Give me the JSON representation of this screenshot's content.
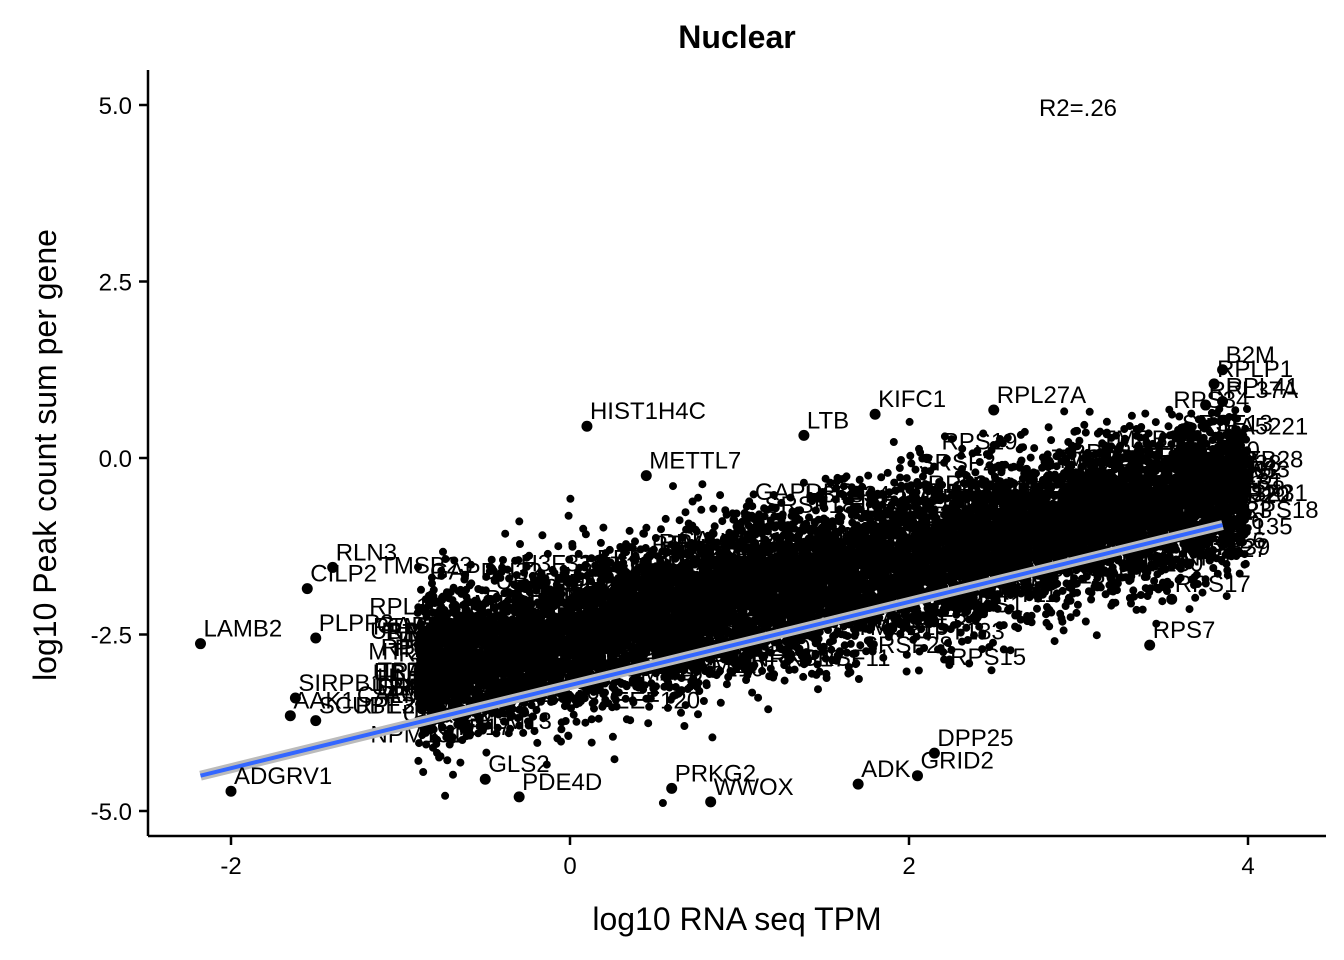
{
  "chart_data": {
    "type": "scatter",
    "title": "Nuclear",
    "xlabel": "log10 RNA seq TPM",
    "ylabel": "log10 Peak count sum per gene",
    "xlim": [
      -2.5,
      4.5
    ],
    "ylim": [
      -5.35,
      5.5
    ],
    "xticks": [
      -2,
      0,
      2,
      4
    ],
    "xtick_labels": [
      "-2",
      "0",
      "2",
      "4"
    ],
    "yticks": [
      -5,
      -2.5,
      0,
      2.5,
      5
    ],
    "ytick_labels": [
      "-5.0",
      "-2.5",
      "0.0",
      "2.5",
      "5.0"
    ],
    "annotation": "R2=.26",
    "grid": false,
    "point_color": "#000000",
    "fit_color": "#3366FF",
    "fit_line": {
      "x": [
        -2.18,
        3.85
      ],
      "y": [
        -4.5,
        -0.95
      ]
    },
    "labeled_points": [
      {
        "label": "HIST1H4C",
        "x": 0.1,
        "y": 0.45
      },
      {
        "label": "KIFC1",
        "x": 1.8,
        "y": 0.62
      },
      {
        "label": "RPL27A",
        "x": 2.5,
        "y": 0.68
      },
      {
        "label": "B2M",
        "x": 3.85,
        "y": 1.25
      },
      {
        "label": "RPLP1",
        "x": 3.8,
        "y": 1.05
      },
      {
        "label": "RPL37A",
        "x": 3.75,
        "y": 0.75
      },
      {
        "label": "METTL7",
        "x": 0.45,
        "y": -0.25
      },
      {
        "label": "LTB",
        "x": 1.38,
        "y": 0.32
      },
      {
        "label": "RLN3",
        "x": -1.4,
        "y": -1.55
      },
      {
        "label": "CILP2",
        "x": -1.55,
        "y": -1.85
      },
      {
        "label": "LAMB2",
        "x": -2.18,
        "y": -2.63
      },
      {
        "label": "PLPP2",
        "x": -1.5,
        "y": -2.55
      },
      {
        "label": "SIRPB1",
        "x": -1.62,
        "y": -3.4
      },
      {
        "label": "AAK1",
        "x": -1.65,
        "y": -3.65
      },
      {
        "label": "SCUBE3",
        "x": -1.5,
        "y": -3.72
      },
      {
        "label": "ADGRV1",
        "x": -2.0,
        "y": -4.72
      },
      {
        "label": "PDE4D",
        "x": -0.3,
        "y": -4.8
      },
      {
        "label": "GLS2",
        "x": -0.5,
        "y": -4.55
      },
      {
        "label": "WWOX",
        "x": 0.83,
        "y": -4.87
      },
      {
        "label": "PRKG2",
        "x": 0.6,
        "y": -4.68
      },
      {
        "label": "ADK",
        "x": 1.7,
        "y": -4.62
      },
      {
        "label": "GRID2",
        "x": 2.05,
        "y": -4.5
      },
      {
        "label": "DPP25",
        "x": 2.15,
        "y": -4.18
      },
      {
        "label": "RPS27",
        "x": 3.65,
        "y": -1.5
      },
      {
        "label": "RPS17",
        "x": 3.55,
        "y": -2.0
      },
      {
        "label": "RPS7",
        "x": 3.42,
        "y": -2.65
      },
      {
        "label": "RPS18",
        "x": 3.95,
        "y": -0.95
      },
      {
        "label": "RPS6",
        "x": 3.7,
        "y": -0.5
      },
      {
        "label": "RPL41",
        "x": 3.85,
        "y": 0.8
      }
    ]
  }
}
